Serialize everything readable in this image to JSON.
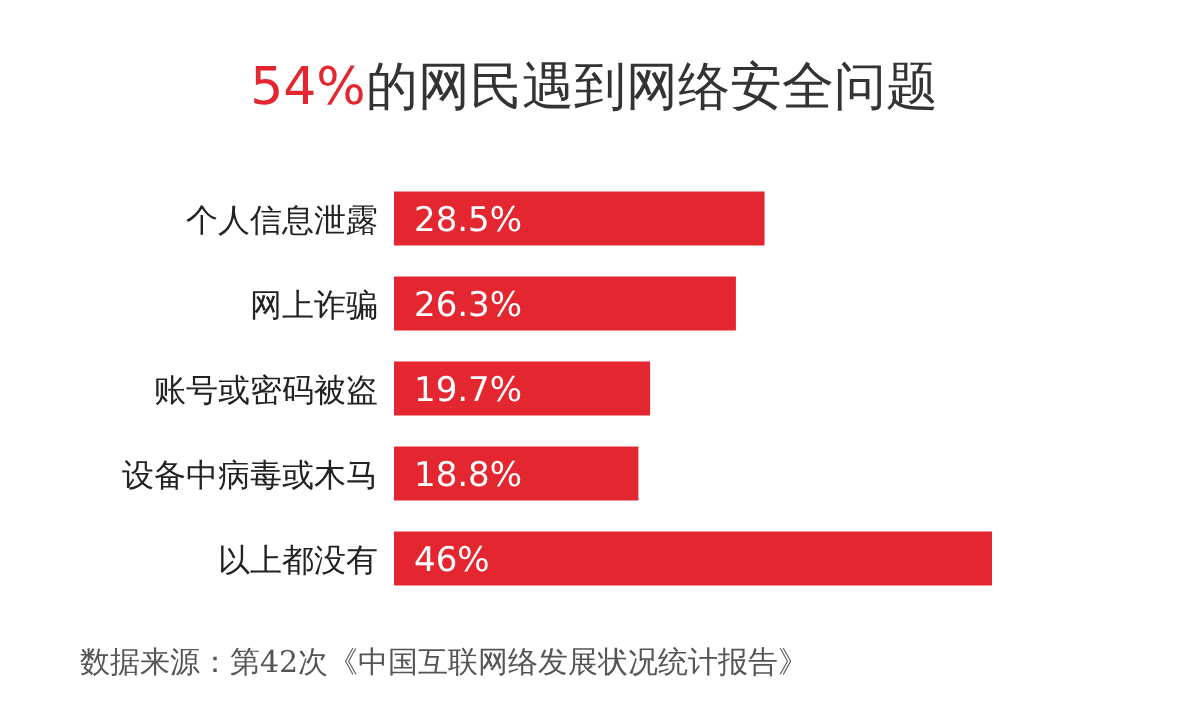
{
  "chart_data": {
    "type": "bar",
    "orientation": "horizontal",
    "title": "54%的网民遇到网络安全问题",
    "categories": [
      "个人信息泄露",
      "网上诈骗",
      "账号或密码被盗",
      "设备中病毒或木马",
      "以上都没有"
    ],
    "values": [
      28.5,
      26.3,
      19.7,
      18.8,
      46
    ],
    "value_labels": [
      "28.5%",
      "26.3%",
      "19.7%",
      "18.8%",
      "46%"
    ],
    "color": "#e3262f",
    "annotations": [
      "数据来源：第42次《中国互联网络发展状况统计报告》"
    ]
  }
}
